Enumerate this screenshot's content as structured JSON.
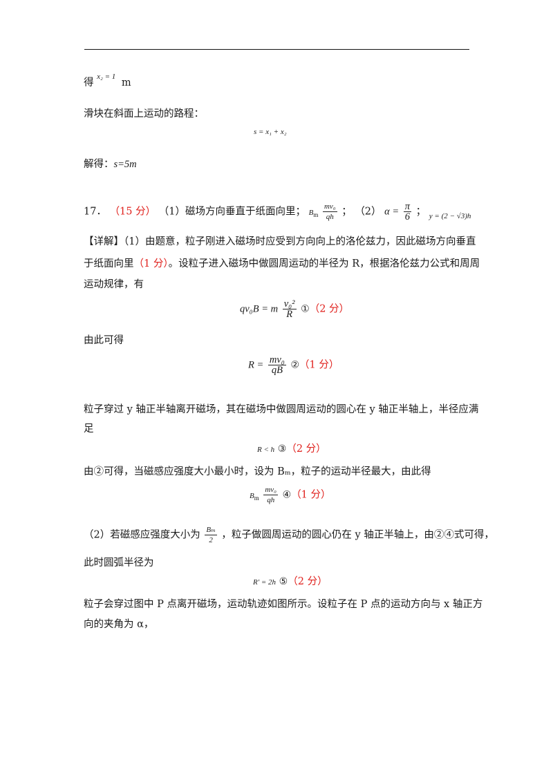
{
  "header_rule": true,
  "line_x2": {
    "prefix": "得",
    "eq": "x₂ = 1",
    "unit": "m"
  },
  "path_intro": "滑块在斜面上运动的路程：",
  "eq_s": "s = x₁ + x₂",
  "solve_s": {
    "label": "解得：",
    "value": "s=5m"
  },
  "q17": {
    "number": "17．",
    "score": "（15 分）",
    "part1": "（1）磁场方向垂直于纸面向里；",
    "bm_lhs": "B",
    "bm_sub": "m",
    "bm_num": "mv₀",
    "bm_den": "qh",
    "sep": "；",
    "part2": "（2）",
    "alpha_lhs": "α =",
    "alpha_num": "π",
    "alpha_den": "6",
    "sep2": "；",
    "y_ans": "y = (2 − √3)h"
  },
  "detail": {
    "tag": "【详解】",
    "p1a": "（1）由题意，粒子刚进入磁场时应受到方向向上的洛伦兹力，因此磁场方向垂直",
    "p1b_pre": "于纸面向里",
    "p1b_score": "（1 分）",
    "p1b_post": "。设粒子进入磁场中做圆周运动的半径为 R，根据洛伦兹力公式和周周",
    "p1c": "运动规律，有",
    "eq1_lhs": "qv₀B = m",
    "eq1_num": "v₀²",
    "eq1_den": "R",
    "eq1_mark": "①",
    "eq1_score": "（2 分）",
    "p2": "由此可得",
    "eq2_lhs": "R =",
    "eq2_num": "mv₀",
    "eq2_den": "qB",
    "eq2_mark": "②",
    "eq2_score": "（1 分）",
    "p3a": "粒子穿过 y 轴正半轴离开磁场，其在磁场中做圆周运动的圆心在 y 轴正半轴上，半径应满",
    "p3b": "足",
    "eq3": "R < h",
    "eq3_mark": "③",
    "eq3_score": "（2 分）",
    "p4": "由②可得，当磁感应强度大小最小时，设为 Bₘ，粒子的运动半径最大，由此得",
    "eq4_lhs": "B",
    "eq4_sub": "m",
    "eq4_num": "mv₀",
    "eq4_den": "qh",
    "eq4_mark": "④",
    "eq4_score": "（1 分）",
    "p5_pre": "（2）若磁感应强度大小为",
    "p5_num": "Bₘ",
    "p5_den": "2",
    "p5_post": "，粒子做圆周运动的圆心仍在 y 轴正半轴上，由②④式可得，",
    "p6": "此时圆弧半径为",
    "eq5": "R′ = 2h",
    "eq5_mark": "⑤",
    "eq5_score": "（2 分）",
    "p7a": "粒子会穿过图中 P 点离开磁场，运动轨迹如图所示。设粒子在 P 点的运动方向与 x 轴正方",
    "p7b": "向的夹角为 α，"
  }
}
